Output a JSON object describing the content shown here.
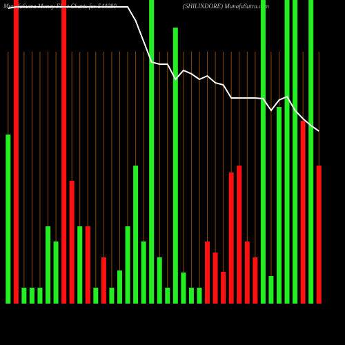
{
  "chart_data": {
    "type": "bar",
    "title": "MunafaSutra  Money Flow  Charts for 544080",
    "subtitle": "(SHILINDORE) MunafaSutra.com",
    "categories": [
      null,
      null,
      null,
      null,
      null,
      null,
      null,
      null,
      null,
      null,
      null,
      null,
      null,
      null,
      null,
      null,
      null,
      null,
      null,
      null,
      null,
      null,
      null,
      null,
      null,
      null,
      null,
      null,
      null,
      null,
      null,
      null,
      null,
      null,
      null,
      null,
      null,
      null,
      null,
      null
    ],
    "values": [
      245,
      440,
      23,
      23,
      23,
      112,
      90,
      440,
      178,
      112,
      112,
      23,
      67,
      23,
      48,
      112,
      200,
      90,
      440,
      67,
      23,
      400,
      45,
      23,
      23,
      90,
      74,
      46,
      190,
      200,
      90,
      67,
      440,
      40,
      285,
      440,
      440,
      265,
      440,
      200
    ],
    "colors": [
      "#22ee22",
      "#ff1111",
      "#22ee22",
      "#22ee22",
      "#22ee22",
      "#22ee22",
      "#22ee22",
      "#ff1111",
      "#ff1111",
      "#22ee22",
      "#ff1111",
      "#22ee22",
      "#ff1111",
      "#22ee22",
      "#22ee22",
      "#22ee22",
      "#22ee22",
      "#22ee22",
      "#22ee22",
      "#22ee22",
      "#22ee22",
      "#22ee22",
      "#22ee22",
      "#22ee22",
      "#22ee22",
      "#ff1111",
      "#ff1111",
      "#ff1111",
      "#ff1111",
      "#ff1111",
      "#ff1111",
      "#ff1111",
      "#22ee22",
      "#22ee22",
      "#22ee22",
      "#22ee22",
      "#22ee22",
      "#ff1111",
      "#22ee22",
      "#ff1111"
    ],
    "ylim": [
      0,
      440
    ],
    "grid": true,
    "grid_color": "#8a4a00",
    "line": {
      "type": "line",
      "color": "#ffffff",
      "axis": "y2",
      "values": [
        428,
        430,
        430,
        430,
        430,
        430,
        430,
        430,
        430,
        430,
        430,
        430,
        430,
        430,
        430,
        430,
        410,
        380,
        350,
        347,
        347,
        325,
        338,
        333,
        325,
        330,
        320,
        317,
        298,
        298,
        298,
        298,
        297,
        280,
        295,
        300,
        280,
        268,
        258,
        250
      ]
    },
    "y2lim": [
      0,
      440
    ]
  }
}
